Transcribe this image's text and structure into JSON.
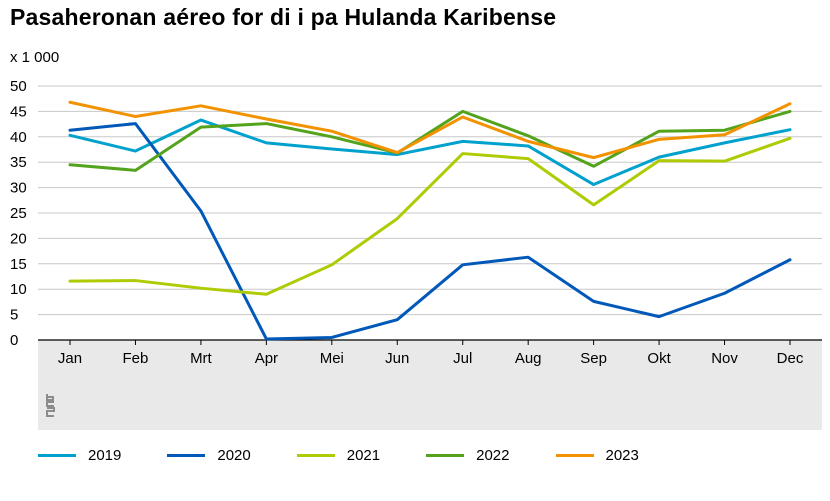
{
  "chart_data": {
    "type": "line",
    "title": "Pasaheronan aéreo for di i pa Hulanda Karibense",
    "unit_label": "x 1 000",
    "xlabel": "",
    "ylabel": "x 1 000",
    "ylim": [
      0,
      50
    ],
    "yticks": [
      0,
      5,
      10,
      15,
      20,
      25,
      30,
      35,
      40,
      45,
      50
    ],
    "grid": true,
    "legend_position": "bottom",
    "categories": [
      "Jan",
      "Feb",
      "Mrt",
      "Apr",
      "Mei",
      "Jun",
      "Jul",
      "Aug",
      "Sep",
      "Okt",
      "Nov",
      "Dec"
    ],
    "series": [
      {
        "name": "2019",
        "color": "#00a1cd",
        "values": [
          40.3,
          37.2,
          43.3,
          38.8,
          37.6,
          36.5,
          39.1,
          38.2,
          30.6,
          36.0,
          38.8,
          41.4
        ]
      },
      {
        "name": "2020",
        "color": "#0058b8",
        "values": [
          41.3,
          42.6,
          25.4,
          0.2,
          0.5,
          4.0,
          14.8,
          16.3,
          7.6,
          4.6,
          9.2,
          15.8
        ]
      },
      {
        "name": "2021",
        "color": "#afcb05",
        "values": [
          11.6,
          11.7,
          10.2,
          9.0,
          14.8,
          23.9,
          36.7,
          35.7,
          26.6,
          35.3,
          35.2,
          39.7
        ]
      },
      {
        "name": "2022",
        "color": "#53a31d",
        "values": [
          34.5,
          33.4,
          41.9,
          42.6,
          40.0,
          36.8,
          45.0,
          40.2,
          34.2,
          41.1,
          41.3,
          45.0
        ]
      },
      {
        "name": "2023",
        "color": "#f39200",
        "values": [
          46.8,
          44.0,
          46.1,
          43.5,
          41.1,
          36.9,
          43.9,
          39.1,
          35.9,
          39.5,
          40.4,
          46.5
        ]
      }
    ]
  },
  "logo": {
    "text": "cbs"
  }
}
